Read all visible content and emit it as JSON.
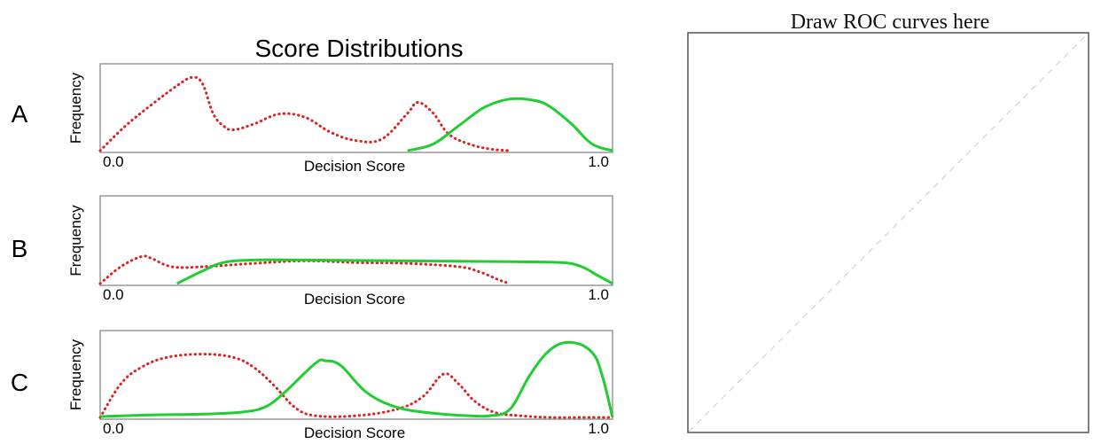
{
  "title": "Score Distributions",
  "roc": {
    "title": "Draw ROC curves here"
  },
  "colors": {
    "negative": "#dd2222",
    "positive": "#22cc33",
    "frame": "#999999",
    "diagonal": "#cccccc"
  },
  "chart_data": [
    {
      "type": "line",
      "panel": "A",
      "ylabel": "Frequency",
      "xlabel": "Decision Score",
      "xtick_left": "0.0",
      "xtick_right": "1.0",
      "xlim": [
        0,
        1
      ],
      "ylim": [
        0,
        1
      ],
      "series": [
        {
          "style": "dotted",
          "color": "#dd2222",
          "x": [
            0.0,
            0.05,
            0.1,
            0.15,
            0.18,
            0.2,
            0.22,
            0.24,
            0.26,
            0.3,
            0.35,
            0.4,
            0.45,
            0.5,
            0.55,
            0.6,
            0.62,
            0.65,
            0.68,
            0.72,
            0.76,
            0.8
          ],
          "y": [
            0.0,
            0.3,
            0.55,
            0.78,
            0.88,
            0.8,
            0.45,
            0.3,
            0.25,
            0.32,
            0.44,
            0.4,
            0.22,
            0.12,
            0.14,
            0.45,
            0.58,
            0.45,
            0.2,
            0.08,
            0.02,
            0.0
          ]
        },
        {
          "style": "solid",
          "color": "#22cc33",
          "x": [
            0.6,
            0.65,
            0.7,
            0.75,
            0.8,
            0.85,
            0.88,
            0.92,
            0.96,
            1.0
          ],
          "y": [
            0.0,
            0.08,
            0.3,
            0.52,
            0.62,
            0.6,
            0.52,
            0.32,
            0.08,
            0.0
          ]
        }
      ]
    },
    {
      "type": "line",
      "panel": "B",
      "ylabel": "Frequency",
      "xlabel": "Decision Score",
      "xtick_left": "0.0",
      "xtick_right": "1.0",
      "xlim": [
        0,
        1
      ],
      "ylim": [
        0,
        1
      ],
      "series": [
        {
          "style": "dotted",
          "color": "#dd2222",
          "x": [
            0.0,
            0.04,
            0.08,
            0.1,
            0.14,
            0.2,
            0.3,
            0.4,
            0.5,
            0.6,
            0.7,
            0.74,
            0.78,
            0.8
          ],
          "y": [
            0.0,
            0.2,
            0.32,
            0.3,
            0.2,
            0.2,
            0.24,
            0.27,
            0.25,
            0.24,
            0.2,
            0.14,
            0.04,
            0.0
          ]
        },
        {
          "style": "solid",
          "color": "#22cc33",
          "x": [
            0.15,
            0.2,
            0.24,
            0.3,
            0.4,
            0.6,
            0.8,
            0.9,
            0.94,
            0.97,
            1.0
          ],
          "y": [
            0.0,
            0.15,
            0.25,
            0.28,
            0.28,
            0.27,
            0.26,
            0.25,
            0.2,
            0.1,
            0.0
          ]
        }
      ]
    },
    {
      "type": "line",
      "panel": "C",
      "ylabel": "Frequency",
      "xlabel": "Decision Score",
      "xtick_left": "0.0",
      "xtick_right": "1.0",
      "xlim": [
        0,
        1
      ],
      "ylim": [
        0,
        1
      ],
      "series": [
        {
          "style": "dotted",
          "color": "#dd2222",
          "x": [
            0.0,
            0.04,
            0.08,
            0.13,
            0.2,
            0.26,
            0.3,
            0.34,
            0.38,
            0.42,
            0.5,
            0.58,
            0.63,
            0.67,
            0.7,
            0.73,
            0.77,
            0.82,
            0.88,
            0.95,
            1.0
          ],
          "y": [
            0.0,
            0.4,
            0.6,
            0.72,
            0.76,
            0.72,
            0.6,
            0.38,
            0.12,
            0.02,
            0.02,
            0.1,
            0.25,
            0.52,
            0.4,
            0.2,
            0.06,
            0.02,
            0.0,
            0.0,
            0.0
          ]
        },
        {
          "style": "solid",
          "color": "#22cc33",
          "x": [
            0.0,
            0.1,
            0.2,
            0.27,
            0.32,
            0.36,
            0.42,
            0.44,
            0.47,
            0.52,
            0.58,
            0.65,
            0.72,
            0.76,
            0.8,
            0.84,
            0.88,
            0.92,
            0.96,
            0.98,
            1.0
          ],
          "y": [
            0.01,
            0.03,
            0.04,
            0.06,
            0.12,
            0.3,
            0.65,
            0.68,
            0.62,
            0.3,
            0.12,
            0.05,
            0.02,
            0.02,
            0.1,
            0.52,
            0.82,
            0.9,
            0.78,
            0.5,
            0.0
          ]
        }
      ]
    }
  ],
  "panel_labels": [
    "A",
    "B",
    "C"
  ]
}
